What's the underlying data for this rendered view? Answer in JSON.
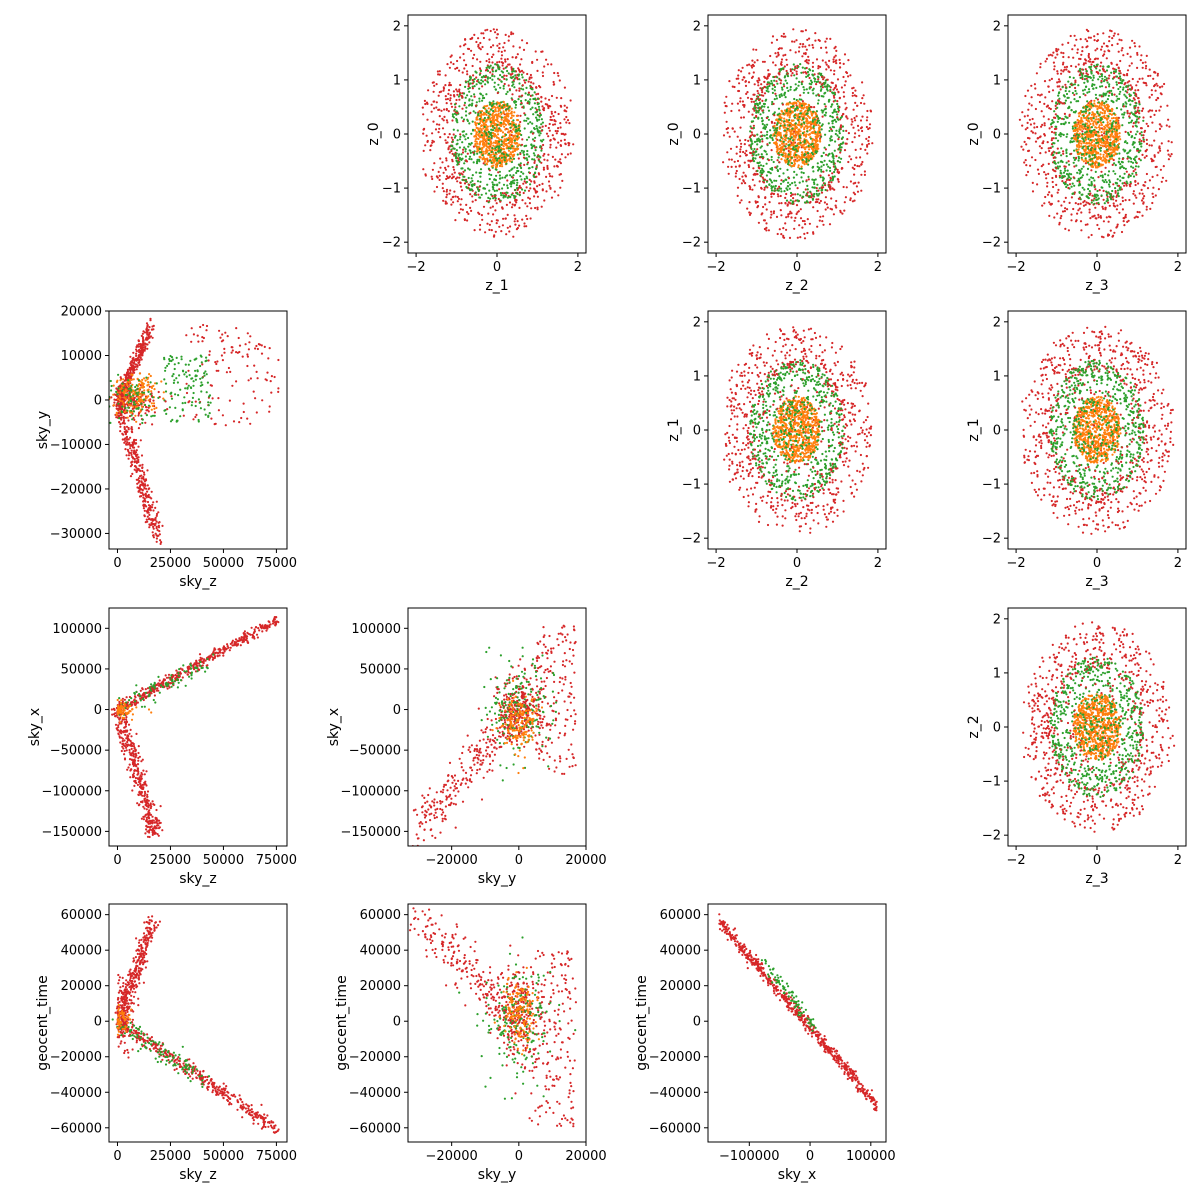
{
  "figure": {
    "type": "corner-scatter-grid",
    "rows": 4,
    "cols": 4
  },
  "colors": {
    "red": "#d62728",
    "green": "#2ca02c",
    "orange": "#ff7f0e"
  },
  "chart_data": [
    {
      "id": "z1_z0",
      "type": "scatter",
      "pattern": "disc",
      "xlabel": "z_1",
      "ylabel": "z_0",
      "xlim": [
        -2.2,
        2.2
      ],
      "ylim": [
        -2.2,
        2.2
      ],
      "xticks": [
        {
          "v": -2,
          "label": "−2"
        },
        {
          "v": 0,
          "label": "0"
        },
        {
          "v": 2,
          "label": "2"
        }
      ],
      "yticks": [
        {
          "v": -2,
          "label": "−2"
        },
        {
          "v": -1,
          "label": "−1"
        },
        {
          "v": 0,
          "label": "0"
        },
        {
          "v": 1,
          "label": "1"
        },
        {
          "v": 2,
          "label": "2"
        }
      ]
    },
    {
      "id": "z2_z0",
      "type": "scatter",
      "pattern": "disc",
      "xlabel": "z_2",
      "ylabel": "z_0",
      "xlim": [
        -2.2,
        2.2
      ],
      "ylim": [
        -2.2,
        2.2
      ],
      "xticks": [
        {
          "v": -2,
          "label": "−2"
        },
        {
          "v": 0,
          "label": "0"
        },
        {
          "v": 2,
          "label": "2"
        }
      ],
      "yticks": [
        {
          "v": -2,
          "label": "−2"
        },
        {
          "v": -1,
          "label": "−1"
        },
        {
          "v": 0,
          "label": "0"
        },
        {
          "v": 1,
          "label": "1"
        },
        {
          "v": 2,
          "label": "2"
        }
      ]
    },
    {
      "id": "z3_z0",
      "type": "scatter",
      "pattern": "disc",
      "xlabel": "z_3",
      "ylabel": "z_0",
      "xlim": [
        -2.2,
        2.2
      ],
      "ylim": [
        -2.2,
        2.2
      ],
      "xticks": [
        {
          "v": -2,
          "label": "−2"
        },
        {
          "v": 0,
          "label": "0"
        },
        {
          "v": 2,
          "label": "2"
        }
      ],
      "yticks": [
        {
          "v": -2,
          "label": "−2"
        },
        {
          "v": -1,
          "label": "−1"
        },
        {
          "v": 0,
          "label": "0"
        },
        {
          "v": 1,
          "label": "1"
        },
        {
          "v": 2,
          "label": "2"
        }
      ]
    },
    {
      "id": "z2_z1",
      "type": "scatter",
      "pattern": "disc",
      "xlabel": "z_2",
      "ylabel": "z_1",
      "xlim": [
        -2.2,
        2.2
      ],
      "ylim": [
        -2.2,
        2.2
      ],
      "xticks": [
        {
          "v": -2,
          "label": "−2"
        },
        {
          "v": 0,
          "label": "0"
        },
        {
          "v": 2,
          "label": "2"
        }
      ],
      "yticks": [
        {
          "v": -2,
          "label": "−2"
        },
        {
          "v": -1,
          "label": "−1"
        },
        {
          "v": 0,
          "label": "0"
        },
        {
          "v": 1,
          "label": "1"
        },
        {
          "v": 2,
          "label": "2"
        }
      ]
    },
    {
      "id": "z3_z1",
      "type": "scatter",
      "pattern": "disc",
      "xlabel": "z_3",
      "ylabel": "z_1",
      "xlim": [
        -2.2,
        2.2
      ],
      "ylim": [
        -2.2,
        2.2
      ],
      "xticks": [
        {
          "v": -2,
          "label": "−2"
        },
        {
          "v": 0,
          "label": "0"
        },
        {
          "v": 2,
          "label": "2"
        }
      ],
      "yticks": [
        {
          "v": -2,
          "label": "−2"
        },
        {
          "v": -1,
          "label": "−1"
        },
        {
          "v": 0,
          "label": "0"
        },
        {
          "v": 1,
          "label": "1"
        },
        {
          "v": 2,
          "label": "2"
        }
      ]
    },
    {
      "id": "z3_z2",
      "type": "scatter",
      "pattern": "disc",
      "xlabel": "z_3",
      "ylabel": "z_2",
      "xlim": [
        -2.2,
        2.2
      ],
      "ylim": [
        -2.2,
        2.2
      ],
      "xticks": [
        {
          "v": -2,
          "label": "−2"
        },
        {
          "v": 0,
          "label": "0"
        },
        {
          "v": 2,
          "label": "2"
        }
      ],
      "yticks": [
        {
          "v": -2,
          "label": "−2"
        },
        {
          "v": -1,
          "label": "−1"
        },
        {
          "v": 0,
          "label": "0"
        },
        {
          "v": 1,
          "label": "1"
        },
        {
          "v": 2,
          "label": "2"
        }
      ]
    },
    {
      "id": "skyz_skyy",
      "type": "scatter",
      "pattern": "skyz_skyy",
      "xlabel": "sky_z",
      "ylabel": "sky_y",
      "xlim": [
        -4000,
        80000
      ],
      "ylim": [
        -33500,
        20000
      ],
      "xticks": [
        {
          "v": 0,
          "label": "0"
        },
        {
          "v": 25000,
          "label": "25000"
        },
        {
          "v": 50000,
          "label": "50000"
        },
        {
          "v": 75000,
          "label": "75000"
        }
      ],
      "yticks": [
        {
          "v": -30000,
          "label": "−30000"
        },
        {
          "v": -20000,
          "label": "−20000"
        },
        {
          "v": -10000,
          "label": "−10000"
        },
        {
          "v": 0,
          "label": "0"
        },
        {
          "v": 10000,
          "label": "10000"
        },
        {
          "v": 20000,
          "label": "20000"
        }
      ]
    },
    {
      "id": "skyz_skyx",
      "type": "scatter",
      "pattern": "skyz_skyx",
      "xlabel": "sky_z",
      "ylabel": "sky_x",
      "xlim": [
        -4000,
        80000
      ],
      "ylim": [
        -168000,
        125000
      ],
      "xticks": [
        {
          "v": 0,
          "label": "0"
        },
        {
          "v": 25000,
          "label": "25000"
        },
        {
          "v": 50000,
          "label": "50000"
        },
        {
          "v": 75000,
          "label": "75000"
        }
      ],
      "yticks": [
        {
          "v": -150000,
          "label": "−150000"
        },
        {
          "v": -100000,
          "label": "−100000"
        },
        {
          "v": -50000,
          "label": "−50000"
        },
        {
          "v": 0,
          "label": "0"
        },
        {
          "v": 50000,
          "label": "50000"
        },
        {
          "v": 100000,
          "label": "100000"
        }
      ]
    },
    {
      "id": "skyy_skyx",
      "type": "scatter",
      "pattern": "skyy_skyx",
      "xlabel": "sky_y",
      "ylabel": "sky_x",
      "xlim": [
        -33000,
        20000
      ],
      "ylim": [
        -168000,
        125000
      ],
      "xticks": [
        {
          "v": -20000,
          "label": "−20000"
        },
        {
          "v": 0,
          "label": "0"
        },
        {
          "v": 20000,
          "label": "20000"
        }
      ],
      "yticks": [
        {
          "v": -150000,
          "label": "−150000"
        },
        {
          "v": -100000,
          "label": "−100000"
        },
        {
          "v": -50000,
          "label": "−50000"
        },
        {
          "v": 0,
          "label": "0"
        },
        {
          "v": 50000,
          "label": "50000"
        },
        {
          "v": 100000,
          "label": "100000"
        }
      ]
    },
    {
      "id": "skyz_time",
      "type": "scatter",
      "pattern": "skyz_time",
      "xlabel": "sky_z",
      "ylabel": "geocent_time",
      "xlim": [
        -4000,
        80000
      ],
      "ylim": [
        -68000,
        66000
      ],
      "xticks": [
        {
          "v": 0,
          "label": "0"
        },
        {
          "v": 25000,
          "label": "25000"
        },
        {
          "v": 50000,
          "label": "50000"
        },
        {
          "v": 75000,
          "label": "75000"
        }
      ],
      "yticks": [
        {
          "v": -60000,
          "label": "−60000"
        },
        {
          "v": -40000,
          "label": "−40000"
        },
        {
          "v": -20000,
          "label": "−20000"
        },
        {
          "v": 0,
          "label": "0"
        },
        {
          "v": 20000,
          "label": "20000"
        },
        {
          "v": 40000,
          "label": "40000"
        },
        {
          "v": 60000,
          "label": "60000"
        }
      ]
    },
    {
      "id": "skyy_time",
      "type": "scatter",
      "pattern": "skyy_time",
      "xlabel": "sky_y",
      "ylabel": "geocent_time",
      "xlim": [
        -33000,
        20000
      ],
      "ylim": [
        -68000,
        66000
      ],
      "xticks": [
        {
          "v": -20000,
          "label": "−20000"
        },
        {
          "v": 0,
          "label": "0"
        },
        {
          "v": 20000,
          "label": "20000"
        }
      ],
      "yticks": [
        {
          "v": -60000,
          "label": "−60000"
        },
        {
          "v": -40000,
          "label": "−40000"
        },
        {
          "v": -20000,
          "label": "−20000"
        },
        {
          "v": 0,
          "label": "0"
        },
        {
          "v": 20000,
          "label": "20000"
        },
        {
          "v": 40000,
          "label": "40000"
        },
        {
          "v": 60000,
          "label": "60000"
        }
      ]
    },
    {
      "id": "skyx_time",
      "type": "scatter",
      "pattern": "skyx_time",
      "xlabel": "sky_x",
      "ylabel": "geocent_time",
      "xlim": [
        -168000,
        125000
      ],
      "ylim": [
        -68000,
        66000
      ],
      "xticks": [
        {
          "v": -100000,
          "label": "−100000"
        },
        {
          "v": 0,
          "label": "0"
        },
        {
          "v": 100000,
          "label": "100000"
        }
      ],
      "yticks": [
        {
          "v": -60000,
          "label": "−60000"
        },
        {
          "v": -40000,
          "label": "−40000"
        },
        {
          "v": -20000,
          "label": "−20000"
        },
        {
          "v": 0,
          "label": "0"
        },
        {
          "v": 20000,
          "label": "20000"
        },
        {
          "v": 40000,
          "label": "40000"
        },
        {
          "v": 60000,
          "label": "60000"
        }
      ]
    }
  ]
}
